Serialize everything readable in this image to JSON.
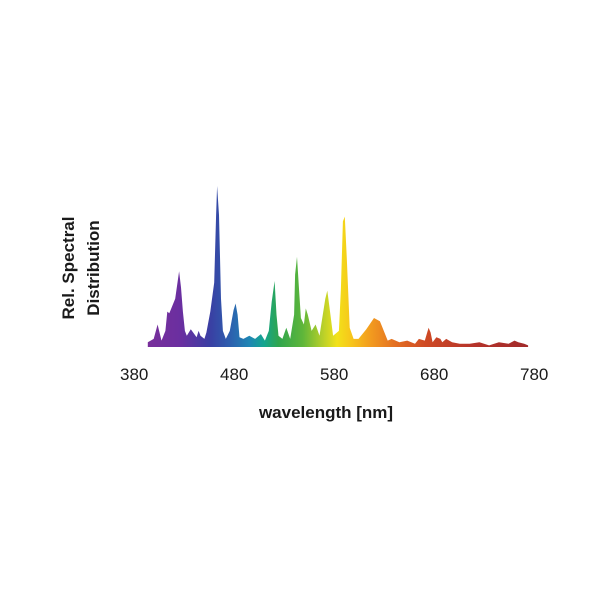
{
  "chart_data": {
    "type": "area",
    "title": "",
    "xlabel": "wavelength [nm]",
    "ylabel_lines": [
      "Rel. Spectral",
      "Distribution"
    ],
    "xlim": [
      380,
      780
    ],
    "ylim": [
      0,
      1
    ],
    "xticks": [
      380,
      480,
      580,
      680,
      780
    ],
    "xtick_labels": [
      "380",
      "480",
      "580",
      "680",
      "780"
    ],
    "grid": false,
    "legend": "none",
    "fill": "visible-spectrum color gradient",
    "series": [
      {
        "x": [
          386,
          392,
          396,
          400,
          404,
          406,
          408,
          410,
          414,
          418,
          420,
          422,
          424,
          426,
          430,
          436,
          438,
          440,
          444,
          446,
          450,
          454,
          456,
          457,
          459,
          461,
          463,
          466,
          470,
          474,
          476,
          478,
          480,
          484,
          490,
          496,
          502,
          506,
          510,
          513,
          516,
          518,
          520,
          524,
          528,
          532,
          536,
          537,
          539,
          541,
          543,
          546,
          548,
          550,
          554,
          558,
          562,
          568,
          570,
          572,
          576,
          582,
          584,
          586,
          588,
          590,
          593,
          597,
          602,
          610,
          618,
          624,
          628,
          632,
          636,
          644,
          652,
          660,
          664,
          670,
          674,
          676,
          678,
          682,
          686,
          688,
          692,
          698,
          706,
          716,
          726,
          736,
          746,
          756,
          762,
          766,
          772,
          776
        ],
        "y": [
          0.03,
          0.05,
          0.14,
          0.04,
          0.1,
          0.22,
          0.21,
          0.24,
          0.3,
          0.47,
          0.37,
          0.22,
          0.1,
          0.07,
          0.11,
          0.06,
          0.1,
          0.07,
          0.05,
          0.09,
          0.22,
          0.4,
          0.82,
          1.0,
          0.82,
          0.3,
          0.1,
          0.05,
          0.1,
          0.23,
          0.27,
          0.2,
          0.06,
          0.05,
          0.07,
          0.05,
          0.08,
          0.04,
          0.1,
          0.28,
          0.41,
          0.2,
          0.07,
          0.05,
          0.12,
          0.05,
          0.2,
          0.45,
          0.56,
          0.36,
          0.18,
          0.14,
          0.24,
          0.2,
          0.1,
          0.14,
          0.07,
          0.3,
          0.35,
          0.26,
          0.07,
          0.1,
          0.36,
          0.78,
          0.81,
          0.55,
          0.12,
          0.05,
          0.05,
          0.11,
          0.18,
          0.16,
          0.1,
          0.04,
          0.05,
          0.03,
          0.04,
          0.02,
          0.05,
          0.04,
          0.12,
          0.09,
          0.03,
          0.06,
          0.05,
          0.03,
          0.05,
          0.03,
          0.02,
          0.02,
          0.03,
          0.01,
          0.03,
          0.02,
          0.04,
          0.03,
          0.02,
          0.01
        ]
      }
    ]
  }
}
